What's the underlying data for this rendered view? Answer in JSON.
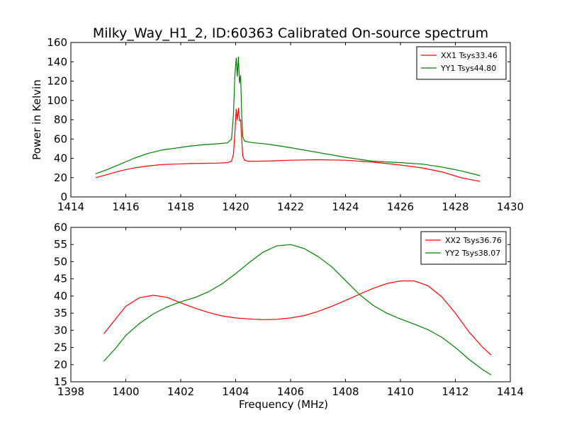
{
  "title": "Milky_Way_H1_2, ID:60363 Calibrated On-source spectrum",
  "chart_data": [
    {
      "type": "line",
      "ylabel": "Power in Kelvin",
      "xlabel": "",
      "xlim": [
        1414,
        1430
      ],
      "ylim": [
        0,
        160
      ],
      "xticks": [
        1414,
        1416,
        1418,
        1420,
        1422,
        1424,
        1426,
        1428,
        1430
      ],
      "yticks": [
        0,
        20,
        40,
        60,
        80,
        100,
        120,
        140,
        160
      ],
      "legend_position": "top-right",
      "series": [
        {
          "name": "XX1 Tsys33.46",
          "color": "#ff0000",
          "x": [
            1414.9,
            1415.3,
            1415.8,
            1416.3,
            1416.8,
            1417.3,
            1417.8,
            1418.3,
            1418.8,
            1419.3,
            1419.7,
            1419.85,
            1419.92,
            1419.97,
            1420.02,
            1420.06,
            1420.1,
            1420.14,
            1420.18,
            1420.22,
            1420.26,
            1420.32,
            1420.45,
            1420.7,
            1421.2,
            1422.0,
            1423.0,
            1424.0,
            1425.0,
            1426.0,
            1426.8,
            1427.5,
            1428.2,
            1428.9
          ],
          "y": [
            20,
            23,
            27,
            30,
            32,
            33.5,
            34,
            34.5,
            34.8,
            35,
            35.5,
            37,
            44,
            65,
            91,
            80,
            92,
            79,
            80,
            60,
            42,
            38,
            37,
            37,
            37.2,
            38,
            38.5,
            38,
            36,
            33,
            30,
            26,
            20,
            16
          ]
        },
        {
          "name": "YY1 Tsys44.80",
          "color": "#008000",
          "x": [
            1414.9,
            1415.3,
            1415.8,
            1416.3,
            1416.8,
            1417.3,
            1417.8,
            1418.3,
            1418.8,
            1419.3,
            1419.7,
            1419.85,
            1419.92,
            1419.97,
            1420.02,
            1420.06,
            1420.1,
            1420.14,
            1420.18,
            1420.22,
            1420.26,
            1420.32,
            1420.45,
            1420.7,
            1421.2,
            1422.0,
            1423.0,
            1424.0,
            1425.0,
            1426.0,
            1426.8,
            1427.5,
            1428.2,
            1428.9
          ],
          "y": [
            24,
            28,
            34,
            40,
            45,
            48.5,
            50.5,
            52.5,
            54,
            55,
            56,
            60,
            85,
            125,
            144,
            125,
            145,
            118,
            126,
            85,
            62,
            58,
            57,
            56,
            54.5,
            51,
            46,
            41,
            37,
            35.5,
            34,
            31,
            27,
            22
          ]
        }
      ]
    },
    {
      "type": "line",
      "ylabel": "",
      "xlabel": "Frequency (MHz)",
      "xlim": [
        1398,
        1414
      ],
      "ylim": [
        15,
        60
      ],
      "xticks": [
        1398,
        1400,
        1402,
        1404,
        1406,
        1408,
        1410,
        1412,
        1414
      ],
      "yticks": [
        15,
        20,
        25,
        30,
        35,
        40,
        45,
        50,
        55,
        60
      ],
      "legend_position": "top-right",
      "series": [
        {
          "name": "XX2 Tsys36.76",
          "color": "#ff0000",
          "x": [
            1399.2,
            1399.6,
            1400.0,
            1400.5,
            1401.0,
            1401.5,
            1402.0,
            1402.5,
            1403.0,
            1403.5,
            1404.0,
            1404.5,
            1405.0,
            1405.5,
            1406.0,
            1406.5,
            1407.0,
            1407.5,
            1408.0,
            1408.5,
            1409.0,
            1409.5,
            1410.0,
            1410.5,
            1411.0,
            1411.5,
            1412.0,
            1412.5,
            1413.0,
            1413.3
          ],
          "y": [
            29,
            33,
            37,
            39.5,
            40.2,
            39.6,
            38,
            36.5,
            35.2,
            34.2,
            33.6,
            33.3,
            33.1,
            33.2,
            33.6,
            34.3,
            35.5,
            37,
            38.7,
            40.5,
            42.2,
            43.6,
            44.4,
            44.4,
            43,
            39.8,
            35,
            29.5,
            25,
            22.8
          ]
        },
        {
          "name": "YY2 Tsys38.07",
          "color": "#008000",
          "x": [
            1399.2,
            1399.6,
            1400.0,
            1400.5,
            1401.0,
            1401.5,
            1402.0,
            1402.5,
            1403.0,
            1403.5,
            1404.0,
            1404.5,
            1405.0,
            1405.5,
            1406.0,
            1406.5,
            1407.0,
            1407.5,
            1408.0,
            1408.5,
            1409.0,
            1409.5,
            1410.0,
            1410.5,
            1411.0,
            1411.5,
            1412.0,
            1412.5,
            1413.0,
            1413.3
          ],
          "y": [
            21,
            24.5,
            28.5,
            32,
            34.8,
            36.8,
            38.3,
            39.5,
            41.2,
            43.5,
            46.5,
            49.8,
            52.8,
            54.6,
            55,
            53.8,
            51.5,
            48.5,
            44.5,
            40.5,
            37.3,
            35,
            33.3,
            31.8,
            30.2,
            28,
            25,
            21.5,
            18.5,
            17
          ]
        }
      ]
    }
  ]
}
